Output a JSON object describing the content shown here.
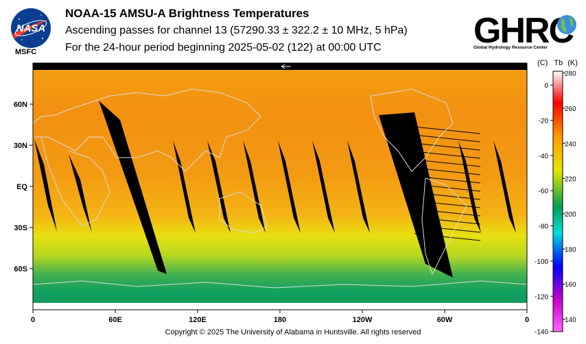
{
  "header": {
    "title": "NOAA-15 AMSU-A Brightness Temperatures",
    "subtitle": "Ascending passes for channel 13 (57290.33 ± 322.2 ± 10 MHz, 5 hPa)",
    "period": "For the 24-hour period beginning 2025-05-02 (122) at 00:00 UTC"
  },
  "logos": {
    "nasa_text": "NASA",
    "msfc_label": "MSFC",
    "ghrc_text": "GHRC",
    "ghrc_subtitle": "Global Hydrology Resource Center"
  },
  "map": {
    "lat_labels": [
      "60N",
      "30N",
      "EQ",
      "30S",
      "60S"
    ],
    "lat_values": [
      60,
      30,
      0,
      -30,
      -60
    ],
    "lon_labels": [
      "0",
      "60E",
      "120E",
      "180",
      "120W",
      "60W",
      "0"
    ],
    "lon_values": [
      0,
      60,
      120,
      180,
      240,
      300,
      360
    ],
    "lat_range": [
      -90,
      90
    ],
    "lon_range": [
      0,
      360
    ]
  },
  "colorbar": {
    "header_c": "(C)",
    "header_tb": "Tb",
    "header_k": "(K)",
    "celsius_ticks": [
      "0",
      "-20",
      "-40",
      "-60",
      "-80",
      "-100",
      "-120",
      "-140"
    ],
    "celsius_values": [
      0,
      -20,
      -40,
      -60,
      -80,
      -100,
      -120,
      -140
    ],
    "kelvin_ticks": [
      "280",
      "260",
      "240",
      "220",
      "200",
      "180",
      "160",
      "140"
    ],
    "kelvin_values": [
      280,
      260,
      240,
      220,
      200,
      180,
      160,
      140
    ],
    "k_range": [
      133,
      281
    ],
    "colors": [
      "#ffffff",
      "#ff0000",
      "#ff9900",
      "#e6e600",
      "#00a050",
      "#00dddd",
      "#0000ff",
      "#cc00cc",
      "#ff66ff"
    ]
  },
  "footer": {
    "copyright": "Copyright © 2025 The University of Alabama in Huntsville.  All rights reserved"
  }
}
